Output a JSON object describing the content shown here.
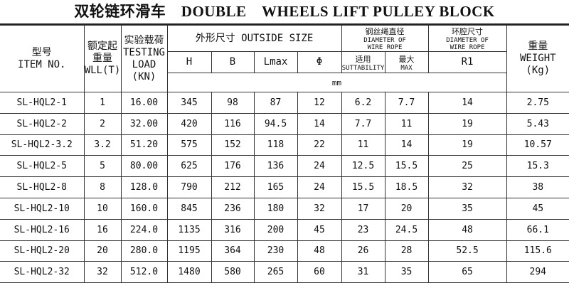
{
  "title": "双轮链环滑车　DOUBLE　WHEELS LIFT PULLEY BLOCK",
  "headers": {
    "item_cn": "型号",
    "item_en": "ITEM NO.",
    "wll_cn": "额定起重量",
    "wll_en": "WLL(T)",
    "load_cn": "实验载荷",
    "load_en1": "TESTING",
    "load_en2": "LOAD",
    "load_en3": "(KN)",
    "outside": "外形尺寸 OUTSIDE SIZE",
    "rope_cn": "钢丝绳直径",
    "rope_en1": "DIAMETER OF",
    "rope_en2": "WIRE ROPE",
    "ring_cn": "环腔尺寸",
    "ring_en1": "DIAMETER OF",
    "ring_en2": "WIRE ROPE",
    "weight_cn": "重量",
    "weight_en": "WEIGHT",
    "weight_unit": "(Kg)",
    "H": "H",
    "B": "B",
    "Lmax": "Lmax",
    "phi": "Φ",
    "suit_cn": "适用",
    "suit_en": "SUTTABILITY",
    "max_cn": "最大",
    "max_en": "MAX",
    "R1": "R1",
    "unit": "mm"
  },
  "rows": [
    [
      "SL-HQL2-1",
      "1",
      "16.00",
      "345",
      "98",
      "87",
      "12",
      "6.2",
      "7.7",
      "14",
      "2.75"
    ],
    [
      "SL-HQL2-2",
      "2",
      "32.00",
      "420",
      "116",
      "94.5",
      "14",
      "7.7",
      "11",
      "19",
      "5.43"
    ],
    [
      "SL-HQL2-3.2",
      "3.2",
      "51.20",
      "575",
      "152",
      "118",
      "22",
      "11",
      "14",
      "19",
      "10.57"
    ],
    [
      "SL-HQL2-5",
      "5",
      "80.00",
      "625",
      "176",
      "136",
      "24",
      "12.5",
      "15.5",
      "25",
      "15.3"
    ],
    [
      "SL-HQL2-8",
      "8",
      "128.0",
      "790",
      "212",
      "165",
      "24",
      "15.5",
      "18.5",
      "32",
      "38"
    ],
    [
      "SL-HQL2-10",
      "10",
      "160.0",
      "845",
      "236",
      "180",
      "32",
      "17",
      "20",
      "35",
      "45"
    ],
    [
      "SL-HQL2-16",
      "16",
      "224.0",
      "1135",
      "316",
      "200",
      "45",
      "23",
      "24.5",
      "48",
      "66.1"
    ],
    [
      "SL-HQL2-20",
      "20",
      "280.0",
      "1195",
      "364",
      "230",
      "48",
      "26",
      "28",
      "52.5",
      "115.6"
    ],
    [
      "SL-HQL2-32",
      "32",
      "512.0",
      "1480",
      "580",
      "265",
      "60",
      "31",
      "35",
      "65",
      "294"
    ]
  ]
}
